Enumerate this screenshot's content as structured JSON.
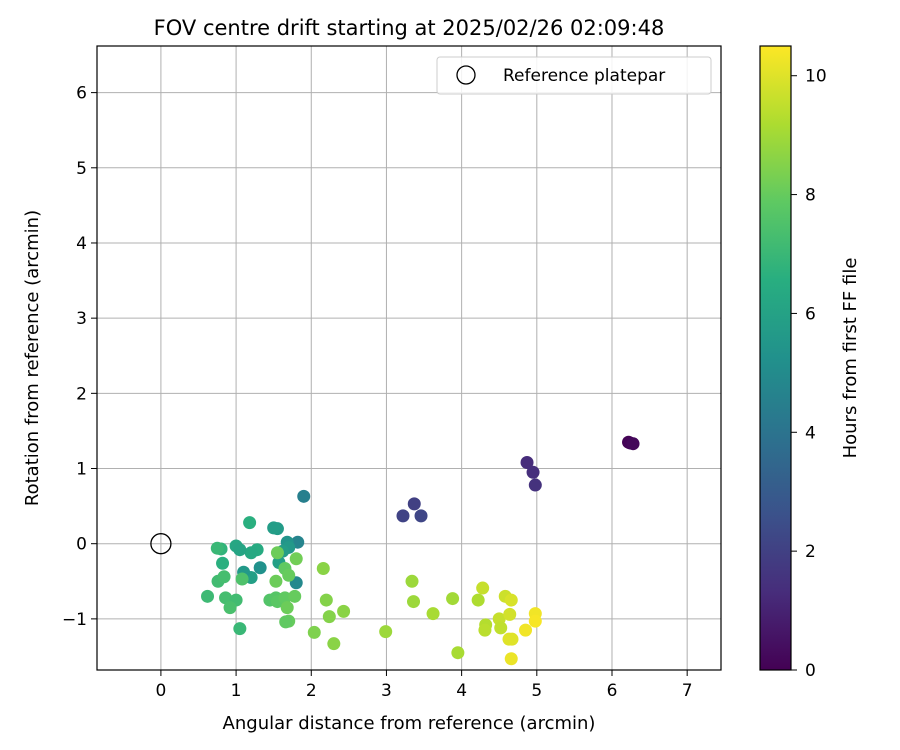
{
  "chart_data": {
    "type": "scatter",
    "title": "FOV centre drift starting at 2025/02/26 02:09:48",
    "xlabel": "Angular distance from reference (arcmin)",
    "ylabel": "Rotation from reference (arcmin)",
    "xlim": [
      -0.85,
      7.45
    ],
    "ylim": [
      -1.68,
      6.62
    ],
    "xticks": [
      0,
      1,
      2,
      3,
      4,
      5,
      6,
      7
    ],
    "yticks": [
      -1,
      0,
      1,
      2,
      3,
      4,
      5,
      6
    ],
    "xtick_labels": [
      "0",
      "1",
      "2",
      "3",
      "4",
      "5",
      "6",
      "7"
    ],
    "ytick_labels": [
      "−1",
      "0",
      "1",
      "2",
      "3",
      "4",
      "5",
      "6"
    ],
    "grid": true,
    "legend": {
      "position": "top-right",
      "entries": [
        {
          "label": "Reference platepar",
          "marker": "open-circle"
        }
      ]
    },
    "reference": {
      "x": 0,
      "y": 0,
      "label": "Reference platepar"
    },
    "colorbar": {
      "label": "Hours from first FF file",
      "colormap": "viridis",
      "range": [
        0,
        10.5
      ],
      "ticks": [
        0,
        2,
        4,
        6,
        8,
        10
      ],
      "tick_labels": [
        "0",
        "2",
        "4",
        "6",
        "8",
        "10"
      ]
    },
    "points": [
      {
        "x": 6.22,
        "y": 1.35,
        "h": 0.05
      },
      {
        "x": 6.24,
        "y": 1.34,
        "h": 0.1
      },
      {
        "x": 6.28,
        "y": 1.33,
        "h": 0.2
      },
      {
        "x": 4.87,
        "y": 1.08,
        "h": 1.3
      },
      {
        "x": 4.95,
        "y": 0.95,
        "h": 1.4
      },
      {
        "x": 4.98,
        "y": 0.78,
        "h": 1.5
      },
      {
        "x": 3.37,
        "y": 0.53,
        "h": 2.0
      },
      {
        "x": 3.22,
        "y": 0.37,
        "h": 2.1
      },
      {
        "x": 3.46,
        "y": 0.37,
        "h": 2.2
      },
      {
        "x": 1.9,
        "y": 0.63,
        "h": 4.5
      },
      {
        "x": 1.82,
        "y": 0.02,
        "h": 4.7
      },
      {
        "x": 1.8,
        "y": -0.52,
        "h": 4.9
      },
      {
        "x": 1.68,
        "y": 0.02,
        "h": 5.4
      },
      {
        "x": 1.7,
        "y": -0.05,
        "h": 5.6
      },
      {
        "x": 1.55,
        "y": 0.2,
        "h": 5.7
      },
      {
        "x": 1.5,
        "y": 0.21,
        "h": 5.8
      },
      {
        "x": 1.57,
        "y": -0.25,
        "h": 5.9
      },
      {
        "x": 1.62,
        "y": -0.1,
        "h": 5.8
      },
      {
        "x": 1.32,
        "y": -0.32,
        "h": 5.3
      },
      {
        "x": 1.2,
        "y": -0.45,
        "h": 5.9
      },
      {
        "x": 1.1,
        "y": -0.38,
        "h": 5.6
      },
      {
        "x": 1.18,
        "y": 0.28,
        "h": 6.6
      },
      {
        "x": 1.28,
        "y": -0.08,
        "h": 6.4
      },
      {
        "x": 1.2,
        "y": -0.12,
        "h": 6.3
      },
      {
        "x": 1.0,
        "y": -0.03,
        "h": 6.2
      },
      {
        "x": 1.05,
        "y": -0.08,
        "h": 6.1
      },
      {
        "x": 0.82,
        "y": -0.26,
        "h": 6.6
      },
      {
        "x": 0.8,
        "y": -0.07,
        "h": 6.8
      },
      {
        "x": 0.75,
        "y": -0.06,
        "h": 7.0
      },
      {
        "x": 0.76,
        "y": -0.5,
        "h": 7.2
      },
      {
        "x": 0.84,
        "y": -0.44,
        "h": 7.3
      },
      {
        "x": 1.08,
        "y": -0.47,
        "h": 7.5
      },
      {
        "x": 0.62,
        "y": -0.7,
        "h": 7.1
      },
      {
        "x": 0.86,
        "y": -0.72,
        "h": 7.3
      },
      {
        "x": 1.0,
        "y": -0.75,
        "h": 7.2
      },
      {
        "x": 0.92,
        "y": -0.85,
        "h": 7.4
      },
      {
        "x": 1.05,
        "y": -1.13,
        "h": 7.0
      },
      {
        "x": 1.45,
        "y": -0.75,
        "h": 7.6
      },
      {
        "x": 1.53,
        "y": -0.72,
        "h": 7.7
      },
      {
        "x": 1.55,
        "y": -0.77,
        "h": 7.8
      },
      {
        "x": 1.65,
        "y": -0.72,
        "h": 7.9
      },
      {
        "x": 1.78,
        "y": -0.7,
        "h": 8.0
      },
      {
        "x": 1.68,
        "y": -0.85,
        "h": 8.1
      },
      {
        "x": 1.7,
        "y": -1.03,
        "h": 8.0
      },
      {
        "x": 1.66,
        "y": -1.04,
        "h": 7.9
      },
      {
        "x": 1.53,
        "y": -0.5,
        "h": 8.1
      },
      {
        "x": 1.65,
        "y": -0.33,
        "h": 7.9
      },
      {
        "x": 1.7,
        "y": -0.42,
        "h": 8.0
      },
      {
        "x": 1.8,
        "y": -0.2,
        "h": 8.2
      },
      {
        "x": 1.55,
        "y": -0.12,
        "h": 8.1
      },
      {
        "x": 2.16,
        "y": -0.33,
        "h": 8.6
      },
      {
        "x": 2.2,
        "y": -0.75,
        "h": 8.5
      },
      {
        "x": 2.24,
        "y": -0.97,
        "h": 8.5
      },
      {
        "x": 2.43,
        "y": -0.9,
        "h": 8.6
      },
      {
        "x": 2.04,
        "y": -1.18,
        "h": 8.4
      },
      {
        "x": 2.3,
        "y": -1.33,
        "h": 8.6
      },
      {
        "x": 2.99,
        "y": -1.17,
        "h": 8.9
      },
      {
        "x": 3.34,
        "y": -0.5,
        "h": 8.9
      },
      {
        "x": 3.36,
        "y": -0.77,
        "h": 8.9
      },
      {
        "x": 3.62,
        "y": -0.93,
        "h": 9.1
      },
      {
        "x": 3.88,
        "y": -0.73,
        "h": 9.0
      },
      {
        "x": 3.95,
        "y": -1.45,
        "h": 9.1
      },
      {
        "x": 4.22,
        "y": -0.75,
        "h": 9.2
      },
      {
        "x": 4.28,
        "y": -0.59,
        "h": 9.6
      },
      {
        "x": 4.32,
        "y": -1.08,
        "h": 9.3
      },
      {
        "x": 4.31,
        "y": -1.15,
        "h": 9.4
      },
      {
        "x": 4.5,
        "y": -1.0,
        "h": 9.6
      },
      {
        "x": 4.52,
        "y": -1.12,
        "h": 9.5
      },
      {
        "x": 4.58,
        "y": -0.7,
        "h": 9.7
      },
      {
        "x": 4.64,
        "y": -0.94,
        "h": 9.8
      },
      {
        "x": 4.66,
        "y": -0.75,
        "h": 9.9
      },
      {
        "x": 4.63,
        "y": -1.27,
        "h": 10.0
      },
      {
        "x": 4.67,
        "y": -1.27,
        "h": 10.0
      },
      {
        "x": 4.66,
        "y": -1.53,
        "h": 10.2
      },
      {
        "x": 4.85,
        "y": -1.15,
        "h": 10.3
      },
      {
        "x": 4.98,
        "y": -0.93,
        "h": 10.3
      },
      {
        "x": 4.98,
        "y": -1.03,
        "h": 10.4
      }
    ]
  }
}
